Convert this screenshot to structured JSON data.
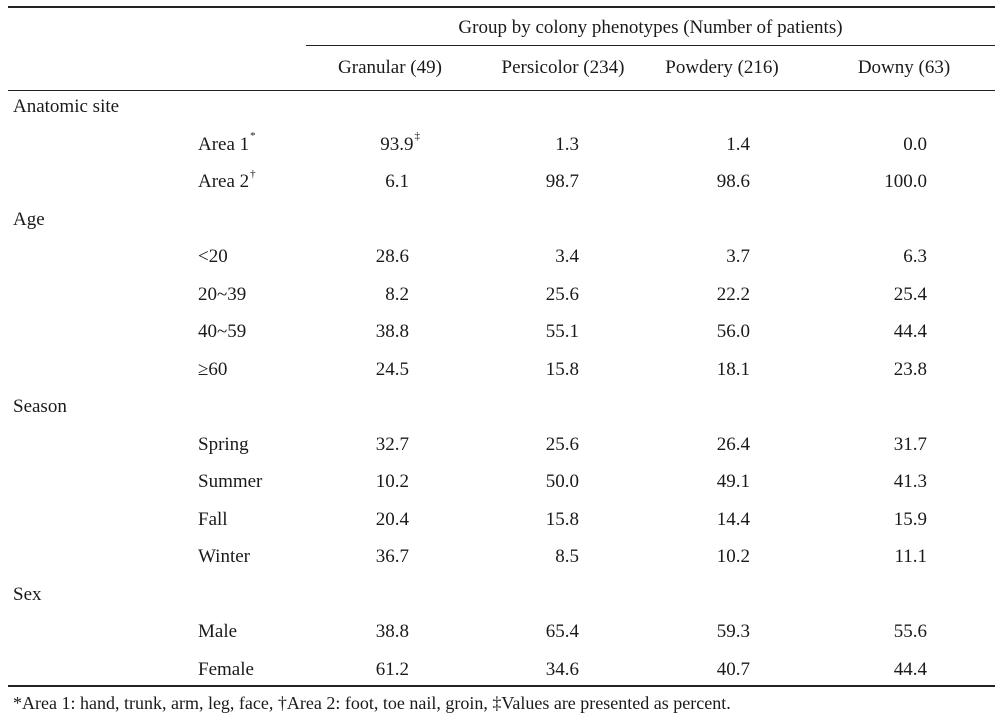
{
  "table": {
    "group_title": "Group by colony phenotypes (Number of patients)",
    "columns": [
      "Granular (49)",
      "Persicolor (234)",
      "Powdery (216)",
      "Downy (63)"
    ],
    "sections": [
      {
        "label": "Anatomic site",
        "rows": [
          {
            "label": "Area 1",
            "mark": "*",
            "values": [
              "93.9",
              "1.3",
              "1.4",
              "0.0"
            ],
            "value_mark": "‡"
          },
          {
            "label": "Area 2",
            "mark": "†",
            "values": [
              "6.1",
              "98.7",
              "98.6",
              "100.0"
            ]
          }
        ]
      },
      {
        "label": "Age",
        "rows": [
          {
            "label": "<20",
            "values": [
              "28.6",
              "3.4",
              "3.7",
              "6.3"
            ]
          },
          {
            "label": "20~39",
            "values": [
              "8.2",
              "25.6",
              "22.2",
              "25.4"
            ]
          },
          {
            "label": "40~59",
            "values": [
              "38.8",
              "55.1",
              "56.0",
              "44.4"
            ]
          },
          {
            "label": "≥60",
            "values": [
              "24.5",
              "15.8",
              "18.1",
              "23.8"
            ]
          }
        ]
      },
      {
        "label": "Season",
        "rows": [
          {
            "label": "Spring",
            "values": [
              "32.7",
              "25.6",
              "26.4",
              "31.7"
            ]
          },
          {
            "label": "Summer",
            "values": [
              "10.2",
              "50.0",
              "49.1",
              "41.3"
            ]
          },
          {
            "label": "Fall",
            "values": [
              "20.4",
              "15.8",
              "14.4",
              "15.9"
            ]
          },
          {
            "label": "Winter",
            "values": [
              "36.7",
              "8.5",
              "10.2",
              "11.1"
            ]
          }
        ]
      },
      {
        "label": "Sex",
        "rows": [
          {
            "label": "Male",
            "values": [
              "38.8",
              "65.4",
              "59.3",
              "55.6"
            ]
          },
          {
            "label": "Female",
            "values": [
              "61.2",
              "34.6",
              "40.7",
              "44.4"
            ]
          }
        ]
      }
    ],
    "footnote": "*Area 1: hand, trunk, arm, leg, face, †Area 2: foot, toe nail, groin, ‡Values are presented as percent."
  }
}
